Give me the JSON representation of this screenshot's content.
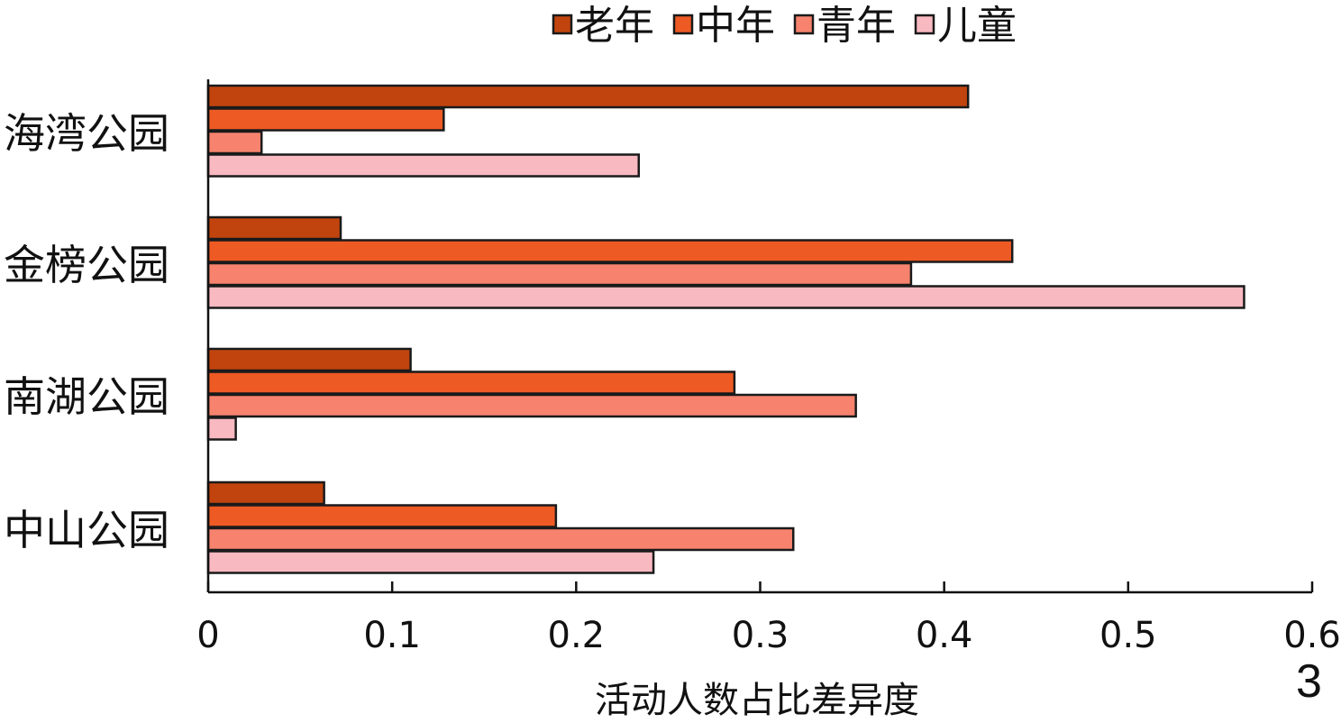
{
  "panel_label": "3",
  "chart_data": {
    "type": "bar",
    "orientation": "horizontal",
    "categories": [
      "海湾公园",
      "金榜公园",
      "南湖公园",
      "中山公园"
    ],
    "series": [
      {
        "name": "老年",
        "color": "#C1440E",
        "values": [
          0.413,
          0.072,
          0.11,
          0.063
        ]
      },
      {
        "name": "中年",
        "color": "#EE5A24",
        "values": [
          0.128,
          0.437,
          0.286,
          0.189
        ]
      },
      {
        "name": "青年",
        "color": "#F7836E",
        "values": [
          0.029,
          0.382,
          0.352,
          0.318
        ]
      },
      {
        "name": "儿童",
        "color": "#F9B9C1",
        "values": [
          0.234,
          0.563,
          0.015,
          0.242
        ]
      }
    ],
    "xlabel": "活动人数占比差异度",
    "ylabel": "",
    "xlim": [
      0,
      0.6
    ],
    "xticks": [
      "0",
      "0.1",
      "0.2",
      "0.3",
      "0.4",
      "0.5",
      "0.6"
    ],
    "legend": "top-center",
    "grid": false
  }
}
